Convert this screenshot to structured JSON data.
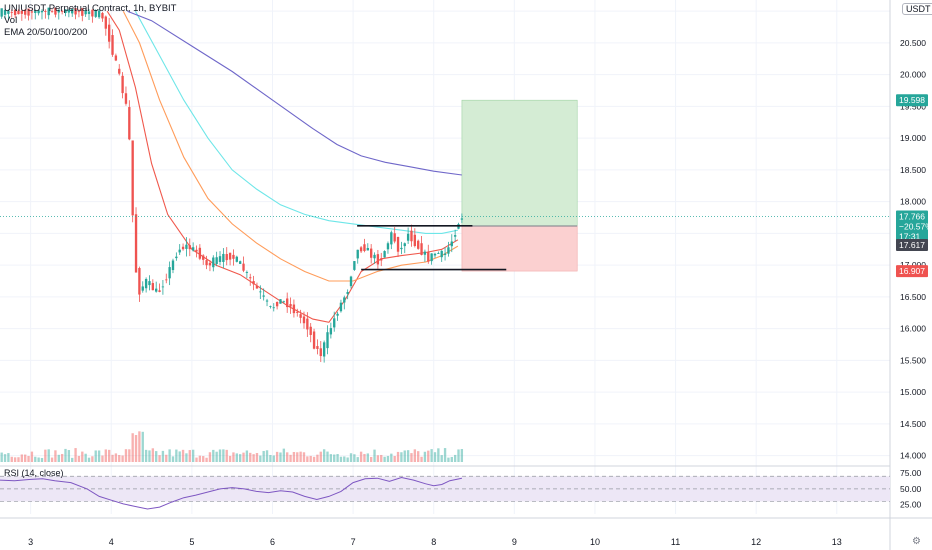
{
  "legend": {
    "symbol": "UNIUSDT Perpetual Contract, 1h, BYBIT",
    "volume": "Vol",
    "ema": "EMA 20/50/100/200"
  },
  "rsi_label": "RSI (14, close)",
  "currency": "USDT",
  "colors": {
    "up": "#26a69a",
    "down": "#ef5350",
    "ema20": "#f0584c",
    "ema50": "#ff9c5a",
    "ema100": "#6ee6e8",
    "ema200": "#6f67c9",
    "profit_zone": "#d4ecd4",
    "loss_zone": "#fbd0d0",
    "rsi_line": "#7e57c2",
    "rsi_band": "#ede7f6"
  },
  "chart_data": {
    "type": "candlestick",
    "title": "UNIUSDT Perpetual Contract, 1h, BYBIT",
    "y_ticks": [
      "21.000",
      "20.500",
      "20.000",
      "19.500",
      "19.000",
      "18.500",
      "18.000",
      "17.500",
      "17.000",
      "16.500",
      "16.000",
      "15.500",
      "15.000",
      "14.500",
      "14.000"
    ],
    "y_range": [
      13.9,
      21.05
    ],
    "x_ticks": [
      "3",
      "4",
      "5",
      "6",
      "7",
      "8",
      "9",
      "10",
      "11",
      "12",
      "13"
    ],
    "x_tick_values": [
      3,
      4,
      5,
      6,
      7,
      8,
      9,
      10,
      11,
      12,
      13
    ],
    "x_range": [
      2.62,
      13.66
    ],
    "price_labels": {
      "target": "19.598",
      "current": "17.766",
      "change": "−20.57%",
      "countdown": "17:31",
      "entry": "17.617",
      "stop": "16.907"
    },
    "position": {
      "entry": 17.617,
      "target": 19.598,
      "stop": 16.907,
      "x_start": 8.35,
      "x_end": 9.78
    },
    "horizontal_lines": [
      {
        "y": 17.62,
        "x_start": 7.05,
        "x_end": 8.48
      },
      {
        "y": 16.93,
        "x_start": 7.1,
        "x_end": 8.9
      }
    ],
    "emas": [
      {
        "name": "EMA 20",
        "color": "#f0584c",
        "points": [
          [
            3.95,
            21.0
          ],
          [
            4.1,
            20.7
          ],
          [
            4.3,
            19.8
          ],
          [
            4.5,
            18.6
          ],
          [
            4.7,
            17.8
          ],
          [
            5.0,
            17.25
          ],
          [
            5.3,
            17.0
          ],
          [
            5.6,
            16.85
          ],
          [
            5.9,
            16.6
          ],
          [
            6.2,
            16.35
          ],
          [
            6.5,
            16.15
          ],
          [
            6.7,
            16.1
          ],
          [
            6.9,
            16.45
          ],
          [
            7.1,
            16.9
          ],
          [
            7.35,
            17.1
          ],
          [
            7.6,
            17.15
          ],
          [
            7.9,
            17.2
          ],
          [
            8.1,
            17.25
          ],
          [
            8.3,
            17.4
          ]
        ]
      },
      {
        "name": "EMA 50",
        "color": "#ff9c5a",
        "points": [
          [
            4.15,
            21.0
          ],
          [
            4.35,
            20.5
          ],
          [
            4.6,
            19.6
          ],
          [
            4.9,
            18.7
          ],
          [
            5.2,
            18.05
          ],
          [
            5.5,
            17.65
          ],
          [
            5.8,
            17.35
          ],
          [
            6.1,
            17.1
          ],
          [
            6.4,
            16.9
          ],
          [
            6.7,
            16.75
          ],
          [
            7.0,
            16.75
          ],
          [
            7.3,
            16.9
          ],
          [
            7.6,
            17.0
          ],
          [
            7.9,
            17.05
          ],
          [
            8.1,
            17.15
          ],
          [
            8.3,
            17.3
          ]
        ]
      },
      {
        "name": "EMA 100",
        "color": "#6ee6e8",
        "points": [
          [
            4.3,
            21.0
          ],
          [
            4.6,
            20.3
          ],
          [
            4.9,
            19.6
          ],
          [
            5.2,
            19.0
          ],
          [
            5.5,
            18.5
          ],
          [
            5.8,
            18.2
          ],
          [
            6.1,
            17.95
          ],
          [
            6.4,
            17.8
          ],
          [
            6.7,
            17.7
          ],
          [
            7.0,
            17.65
          ],
          [
            7.3,
            17.6
          ],
          [
            7.6,
            17.55
          ],
          [
            7.9,
            17.5
          ],
          [
            8.1,
            17.5
          ],
          [
            8.3,
            17.55
          ]
        ]
      },
      {
        "name": "EMA 200",
        "color": "#6f67c9",
        "points": [
          [
            4.2,
            21.0
          ],
          [
            4.5,
            20.85
          ],
          [
            5.0,
            20.45
          ],
          [
            5.5,
            20.05
          ],
          [
            6.0,
            19.6
          ],
          [
            6.5,
            19.15
          ],
          [
            6.8,
            18.9
          ],
          [
            7.1,
            18.72
          ],
          [
            7.4,
            18.62
          ],
          [
            7.7,
            18.55
          ],
          [
            8.0,
            18.48
          ],
          [
            8.35,
            18.42
          ]
        ]
      }
    ],
    "rsi": {
      "name": "RSI (14, close)",
      "y_ticks": [
        "75.00",
        "50.00",
        "25.00"
      ],
      "y_range": [
        10,
        80
      ],
      "upper": 70,
      "lower": 30,
      "mid": 50,
      "points": [
        [
          2.62,
          64
        ],
        [
          2.8,
          63
        ],
        [
          3.0,
          65
        ],
        [
          3.15,
          66
        ],
        [
          3.3,
          63
        ],
        [
          3.5,
          60
        ],
        [
          3.7,
          50
        ],
        [
          3.85,
          38
        ],
        [
          4.0,
          32
        ],
        [
          4.15,
          26
        ],
        [
          4.3,
          22
        ],
        [
          4.45,
          18
        ],
        [
          4.6,
          21
        ],
        [
          4.75,
          29
        ],
        [
          4.9,
          36
        ],
        [
          5.05,
          40
        ],
        [
          5.2,
          45
        ],
        [
          5.35,
          50
        ],
        [
          5.5,
          52
        ],
        [
          5.65,
          50
        ],
        [
          5.8,
          46
        ],
        [
          5.95,
          44
        ],
        [
          6.1,
          47
        ],
        [
          6.25,
          45
        ],
        [
          6.4,
          38
        ],
        [
          6.55,
          33
        ],
        [
          6.7,
          38
        ],
        [
          6.85,
          46
        ],
        [
          7.0,
          60
        ],
        [
          7.15,
          66
        ],
        [
          7.3,
          67
        ],
        [
          7.45,
          62
        ],
        [
          7.6,
          68
        ],
        [
          7.75,
          64
        ],
        [
          7.9,
          58
        ],
        [
          8.0,
          55
        ],
        [
          8.1,
          57
        ],
        [
          8.2,
          63
        ],
        [
          8.35,
          67
        ]
      ]
    }
  }
}
